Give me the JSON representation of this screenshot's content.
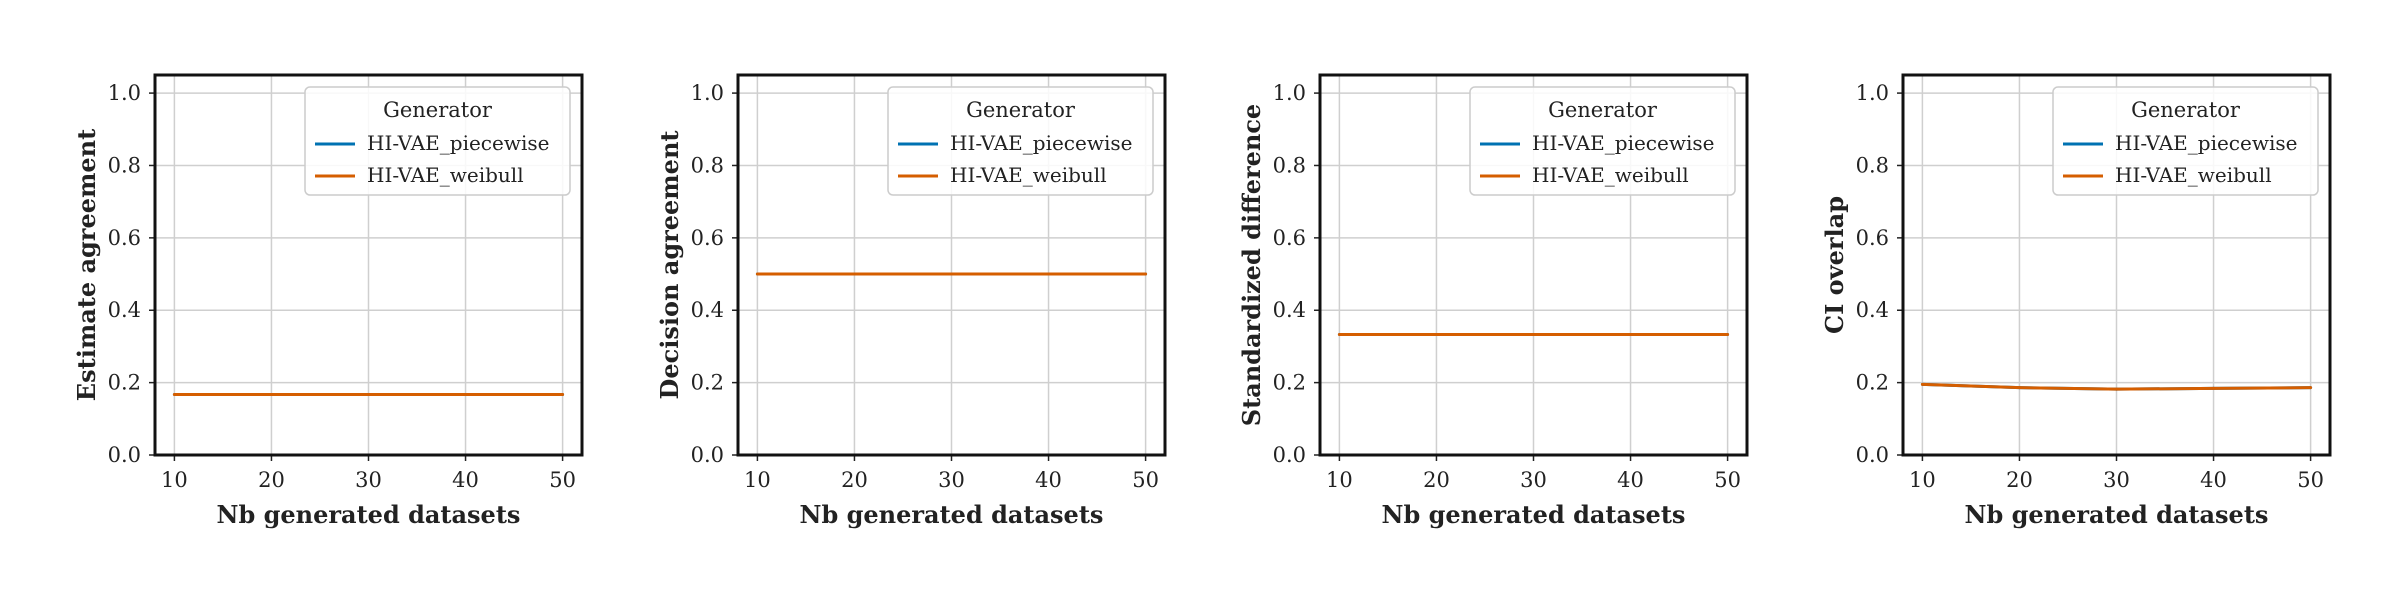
{
  "chart_data": [
    {
      "type": "line",
      "ylabel": "Estimate agreement",
      "xlabel": "Nb generated datasets",
      "x": [
        10,
        20,
        30,
        40,
        50
      ],
      "xlim": [
        8,
        52
      ],
      "ylim": [
        0.0,
        1.05
      ],
      "xticks": [
        10,
        20,
        30,
        40,
        50
      ],
      "yticks": [
        0.0,
        0.2,
        0.4,
        0.6,
        0.8,
        1.0
      ],
      "grid": true,
      "legend": {
        "title": "Generator",
        "placement": "top-right"
      },
      "series": [
        {
          "name": "HI-VAE_piecewise",
          "color": "#0072B2",
          "values": [
            0.167,
            0.167,
            0.167,
            0.167,
            0.167
          ]
        },
        {
          "name": "HI-VAE_weibull",
          "color": "#D55E00",
          "values": [
            0.167,
            0.167,
            0.167,
            0.167,
            0.167
          ]
        }
      ]
    },
    {
      "type": "line",
      "ylabel": "Decision agreement",
      "xlabel": "Nb generated datasets",
      "x": [
        10,
        20,
        30,
        40,
        50
      ],
      "xlim": [
        8,
        52
      ],
      "ylim": [
        0.0,
        1.05
      ],
      "xticks": [
        10,
        20,
        30,
        40,
        50
      ],
      "yticks": [
        0.0,
        0.2,
        0.4,
        0.6,
        0.8,
        1.0
      ],
      "grid": true,
      "legend": {
        "title": "Generator",
        "placement": "top-right"
      },
      "series": [
        {
          "name": "HI-VAE_piecewise",
          "color": "#0072B2",
          "values": [
            0.5,
            0.5,
            0.5,
            0.5,
            0.5
          ]
        },
        {
          "name": "HI-VAE_weibull",
          "color": "#D55E00",
          "values": [
            0.5,
            0.5,
            0.5,
            0.5,
            0.5
          ]
        }
      ]
    },
    {
      "type": "line",
      "ylabel": "Standardized difference",
      "xlabel": "Nb generated datasets",
      "x": [
        10,
        20,
        30,
        40,
        50
      ],
      "xlim": [
        8,
        52
      ],
      "ylim": [
        0.0,
        1.05
      ],
      "xticks": [
        10,
        20,
        30,
        40,
        50
      ],
      "yticks": [
        0.0,
        0.2,
        0.4,
        0.6,
        0.8,
        1.0
      ],
      "grid": true,
      "legend": {
        "title": "Generator",
        "placement": "top-right"
      },
      "series": [
        {
          "name": "HI-VAE_piecewise",
          "color": "#0072B2",
          "values": [
            0.333,
            0.333,
            0.333,
            0.333,
            0.333
          ]
        },
        {
          "name": "HI-VAE_weibull",
          "color": "#D55E00",
          "values": [
            0.333,
            0.333,
            0.333,
            0.333,
            0.333
          ]
        }
      ]
    },
    {
      "type": "line",
      "ylabel": "CI overlap",
      "xlabel": "Nb generated datasets",
      "x": [
        10,
        20,
        30,
        40,
        50
      ],
      "xlim": [
        8,
        52
      ],
      "ylim": [
        0.0,
        1.05
      ],
      "xticks": [
        10,
        20,
        30,
        40,
        50
      ],
      "yticks": [
        0.0,
        0.2,
        0.4,
        0.6,
        0.8,
        1.0
      ],
      "grid": true,
      "legend": {
        "title": "Generator",
        "placement": "top-right"
      },
      "series": [
        {
          "name": "HI-VAE_piecewise",
          "color": "#0072B2",
          "values": [
            0.195,
            0.186,
            0.182,
            0.184,
            0.186
          ]
        },
        {
          "name": "HI-VAE_weibull",
          "color": "#D55E00",
          "values": [
            0.195,
            0.186,
            0.182,
            0.184,
            0.186
          ]
        }
      ]
    }
  ]
}
